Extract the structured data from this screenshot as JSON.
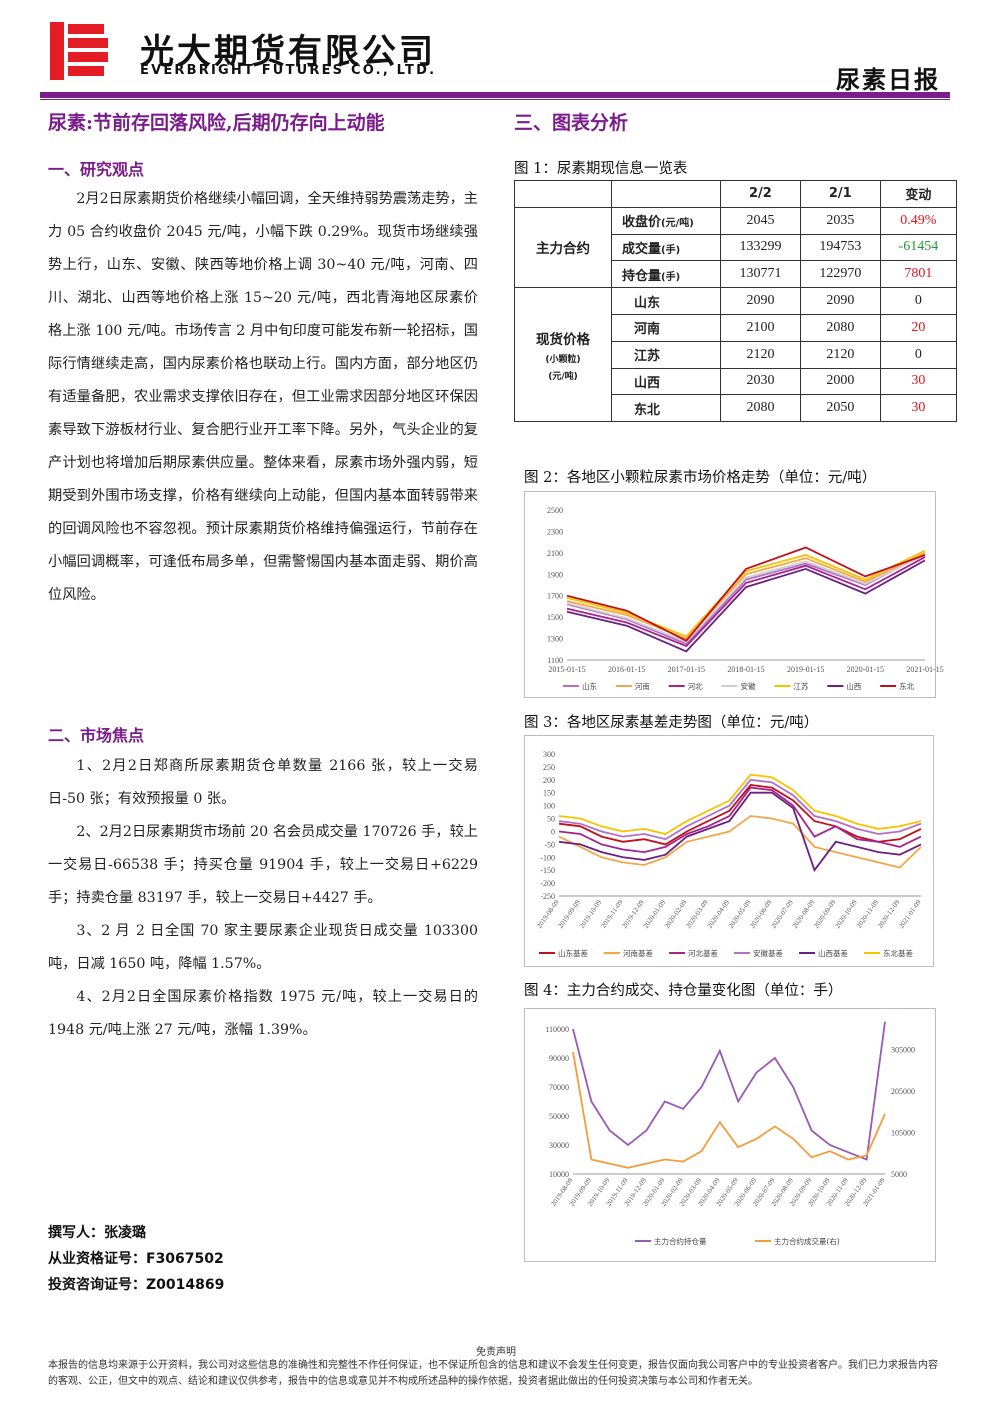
{
  "header": {
    "company_cn": "光大期货有限公司",
    "company_en": "EVERBRIGHT FUTURES CO., LTD.",
    "report_type": "尿素日报",
    "brand_colors": {
      "purple": "#7a1d8a",
      "red": "#e31c25"
    }
  },
  "main_title": "尿素:节前存回落风险,后期仍存向上动能",
  "section1": {
    "title": "一、研究观点",
    "paragraph": "2月2日尿素期货价格继续小幅回调，全天维持弱势震荡走势，主力 05 合约收盘价 2045 元/吨，小幅下跌 0.29%。现货市场继续强势上行，山东、安徽、陕西等地价格上调 30~40 元/吨，河南、四川、湖北、山西等地价格上涨 15~20 元/吨，西北青海地区尿素价格上涨 100 元/吨。市场传言 2 月中旬印度可能发布新一轮招标，国际行情继续走高，国内尿素价格也联动上行。国内方面，部分地区仍有适量备肥，农业需求支撑依旧存在，但工业需求因部分地区环保因素导致下游板材行业、复合肥行业开工率下降。另外，气头企业的复产计划也将增加后期尿素供应量。整体来看，尿素市场外强内弱，短期受到外围市场支撑，价格有继续向上动能，但国内基本面转弱带来的回调风险也不容忽视。预计尿素期货价格维持偏强运行，节前存在小幅回调概率，可逢低布局多单，但需警惕国内基本面走弱、期价高位风险。"
  },
  "section2": {
    "title": "二、市场焦点",
    "items": [
      "1、2月2日郑商所尿素期货仓单数量 2166 张，较上一交易日-50 张；有效预报量 0 张。",
      "2、2月2日尿素期货市场前 20 名会员成交量 170726 手，较上一交易日-66538 手；持买仓量 91904 手，较上一交易日+6229 手；持卖仓量 83197 手，较上一交易日+4427 手。",
      "3、2 月 2 日全国 70 家主要尿素企业现货日成交量 103300 吨，日减 1650 吨，降幅 1.57%。",
      "4、2月2日全国尿素价格指数 1975 元/吨，较上一交易日的 1948 元/吨上涨 27 元/吨，涨幅 1.39%。"
    ]
  },
  "section3": {
    "title": "三、图表分析",
    "fig1_caption": "图 1：尿素期现信息一览表",
    "table": {
      "col_headers": [
        "2/2",
        "2/1",
        "变动"
      ],
      "group1_label": "主力合约",
      "group1_rows": [
        {
          "label": "收盘价",
          "unit": "(元/吨)",
          "v1": "2045",
          "v2": "2035",
          "chg": "0.49%",
          "color": "red"
        },
        {
          "label": "成交量",
          "unit": "(手)",
          "v1": "133299",
          "v2": "194753",
          "chg": "-61454",
          "color": "green"
        },
        {
          "label": "持仓量",
          "unit": "(手)",
          "v1": "130771",
          "v2": "122970",
          "chg": "7801",
          "color": "red"
        }
      ],
      "group2_label": "现货价格",
      "group2_sub1": "(小颗粒)",
      "group2_sub2": "(元/吨)",
      "group2_rows": [
        {
          "label": "山东",
          "v1": "2090",
          "v2": "2090",
          "chg": "0",
          "color": "black"
        },
        {
          "label": "河南",
          "v1": "2100",
          "v2": "2080",
          "chg": "20",
          "color": "red"
        },
        {
          "label": "江苏",
          "v1": "2120",
          "v2": "2120",
          "chg": "0",
          "color": "black"
        },
        {
          "label": "山西",
          "v1": "2030",
          "v2": "2000",
          "chg": "30",
          "color": "red"
        },
        {
          "label": "东北",
          "v1": "2080",
          "v2": "2050",
          "chg": "30",
          "color": "red"
        }
      ]
    },
    "fig2_caption": "图 2：各地区小颗粒尿素市场价格走势（单位：元/吨）",
    "fig3_caption": "图 3：各地区尿素基差走势图（单位：元/吨）",
    "fig4_caption": "图 4：主力合约成交、持仓量变化图（单位：手）"
  },
  "chart_data": [
    {
      "type": "line",
      "title": "",
      "x": [
        "2015-01-15",
        "2016-01-15",
        "2017-01-15",
        "2018-01-15",
        "2019-01-15",
        "2020-01-15",
        "2021-01-15"
      ],
      "ylim": [
        1100,
        2500
      ],
      "yticks": [
        1100,
        1300,
        1500,
        1700,
        1900,
        2100,
        2300,
        2500
      ],
      "legend_position": "bottom",
      "series": [
        {
          "name": "山东",
          "color": "#b36fc8",
          "values": [
            1620,
            1480,
            1250,
            1850,
            2000,
            1800,
            2090
          ]
        },
        {
          "name": "河南",
          "color": "#f3a649",
          "values": [
            1650,
            1520,
            1300,
            1900,
            2050,
            1830,
            2100
          ]
        },
        {
          "name": "河北",
          "color": "#a8228e",
          "values": [
            1580,
            1450,
            1230,
            1820,
            1980,
            1760,
            2060
          ]
        },
        {
          "name": "安徽",
          "color": "#cfcfcf",
          "values": [
            1630,
            1490,
            1270,
            1870,
            2020,
            1810,
            2080
          ]
        },
        {
          "name": "江苏",
          "color": "#f7c300",
          "values": [
            1680,
            1540,
            1320,
            1930,
            2080,
            1850,
            2120
          ]
        },
        {
          "name": "山西",
          "color": "#6b1f82",
          "values": [
            1550,
            1420,
            1180,
            1780,
            1950,
            1720,
            2030
          ]
        },
        {
          "name": "东北",
          "color": "#c0101a",
          "values": [
            1700,
            1560,
            1280,
            1950,
            2150,
            1880,
            2080
          ]
        }
      ]
    },
    {
      "type": "line",
      "title": "",
      "x": [
        "2019-08-09",
        "2019-09-09",
        "2019-10-09",
        "2019-11-09",
        "2019-12-09",
        "2020-01-09",
        "2020-02-09",
        "2020-03-09",
        "2020-04-09",
        "2020-05-09",
        "2020-06-09",
        "2020-07-09",
        "2020-08-09",
        "2020-09-09",
        "2020-10-09",
        "2020-11-09",
        "2020-12-09",
        "2021-01-09"
      ],
      "ylim": [
        -250,
        300
      ],
      "yticks": [
        -250,
        -200,
        -150,
        -100,
        -50,
        0,
        50,
        100,
        150,
        200,
        250,
        300
      ],
      "legend_position": "bottom",
      "series": [
        {
          "name": "山东基差",
          "color": "#c0101a",
          "values": [
            30,
            20,
            -20,
            -40,
            -30,
            -50,
            0,
            40,
            80,
            180,
            170,
            120,
            40,
            20,
            -20,
            -40,
            -30,
            10
          ]
        },
        {
          "name": "河南基差",
          "color": "#f3a649",
          "values": [
            -20,
            -60,
            -100,
            -120,
            -130,
            -100,
            -40,
            -20,
            0,
            60,
            50,
            30,
            -60,
            -80,
            -100,
            -120,
            -140,
            -60
          ]
        },
        {
          "name": "河北基差",
          "color": "#a8228e",
          "values": [
            0,
            -10,
            -50,
            -70,
            -80,
            -60,
            -10,
            20,
            60,
            170,
            160,
            100,
            -20,
            20,
            -30,
            -40,
            -60,
            -20
          ]
        },
        {
          "name": "安徽基差",
          "color": "#b36fc8",
          "values": [
            40,
            30,
            0,
            -20,
            -10,
            -30,
            20,
            60,
            100,
            200,
            190,
            140,
            60,
            40,
            10,
            -10,
            0,
            30
          ]
        },
        {
          "name": "山西基差",
          "color": "#6b1f82",
          "values": [
            -40,
            -50,
            -80,
            -100,
            -110,
            -90,
            -20,
            10,
            40,
            150,
            150,
            90,
            -150,
            -40,
            -60,
            -80,
            -90,
            -50
          ]
        },
        {
          "name": "东北基差",
          "color": "#f7c300",
          "values": [
            60,
            50,
            20,
            0,
            10,
            -10,
            40,
            80,
            120,
            220,
            210,
            160,
            80,
            60,
            30,
            10,
            20,
            40
          ]
        }
      ]
    },
    {
      "type": "line",
      "title": "",
      "x": [
        "2019-08-09",
        "2019-09-09",
        "2019-10-09",
        "2019-11-09",
        "2019-12-09",
        "2020-01-09",
        "2020-02-09",
        "2020-03-09",
        "2020-04-09",
        "2020-05-09",
        "2020-06-09",
        "2020-07-09",
        "2020-08-09",
        "2020-09-09",
        "2020-10-09",
        "2020-11-09",
        "2020-12-09",
        "2021-01-09"
      ],
      "ylim_left": [
        10000,
        110000
      ],
      "yticks_left": [
        10000,
        30000,
        50000,
        70000,
        90000,
        110000
      ],
      "ylim_right": [
        5000,
        355000
      ],
      "yticks_right": [
        5000,
        105000,
        205000,
        305000
      ],
      "legend_position": "bottom",
      "series": [
        {
          "name": "主力合约持仓量",
          "axis": "left",
          "color": "#9b59b6",
          "values": [
            110000,
            60000,
            40000,
            30000,
            40000,
            60000,
            55000,
            70000,
            95000,
            60000,
            80000,
            90000,
            70000,
            40000,
            30000,
            25000,
            20000,
            115000
          ]
        },
        {
          "name": "主力合约成交量(右)",
          "axis": "right",
          "color": "#f39c3d",
          "values": [
            300000,
            40000,
            30000,
            20000,
            30000,
            40000,
            35000,
            60000,
            130000,
            70000,
            90000,
            120000,
            90000,
            45000,
            60000,
            40000,
            50000,
            150000
          ]
        }
      ]
    }
  ],
  "author": {
    "line1_label": "撰写人：",
    "line1_value": "张凌璐",
    "line2_label": "从业资格证号：",
    "line2_value": "F3067502",
    "line3_label": "投资咨询证号：",
    "line3_value": "Z0014869"
  },
  "disclaimer": {
    "title": "免责声明",
    "text": "本报告的信息均来源于公开资料，我公司对这些信息的准确性和完整性不作任何保证，也不保证所包含的信息和建议不会发生任何变更，报告仅面向我公司客户中的专业投资者客户。我们已力求报告内容的客观、公正，但文中的观点、结论和建议仅供参考，报告中的信息或意见并不构成所述品种的操作依据，投资者据此做出的任何投资决策与本公司和作者无关。"
  }
}
